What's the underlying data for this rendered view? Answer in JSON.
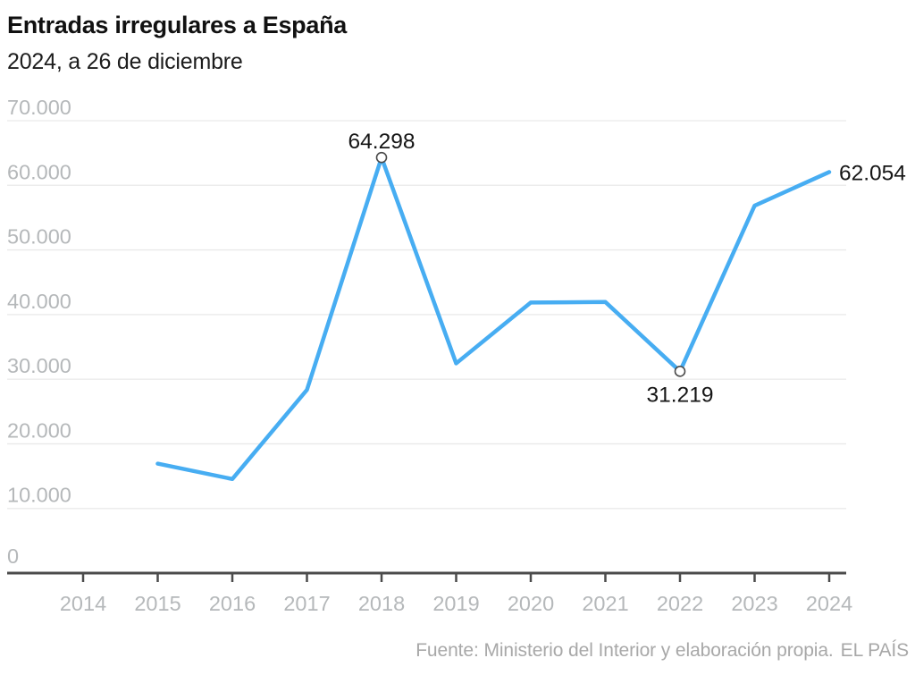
{
  "header": {
    "title": "Entradas irregulares a España",
    "subtitle": "2024, a 26 de diciembre"
  },
  "chart_data": {
    "type": "line",
    "title": "Entradas irregulares a España",
    "subtitle": "2024, a 26 de diciembre",
    "x": [
      2015,
      2016,
      2017,
      2018,
      2019,
      2020,
      2021,
      2022,
      2023,
      2024
    ],
    "values": [
      16936,
      14558,
      28349,
      64298,
      32449,
      41861,
      41945,
      31219,
      56852,
      62054
    ],
    "x_ticks": [
      2014,
      2015,
      2016,
      2017,
      2018,
      2019,
      2020,
      2021,
      2022,
      2023,
      2024
    ],
    "x_tick_labels": [
      "2014",
      "2015",
      "2016",
      "2017",
      "2018",
      "2019",
      "2020",
      "2021",
      "2022",
      "2023",
      "2024"
    ],
    "y_ticks": [
      0,
      10000,
      20000,
      30000,
      40000,
      50000,
      60000,
      70000
    ],
    "y_tick_labels": [
      "0",
      "10.000",
      "20.000",
      "30.000",
      "40.000",
      "50.000",
      "60.000",
      "70.000"
    ],
    "ylim": [
      0,
      70000
    ],
    "xlim": [
      2014,
      2024
    ],
    "grid": "horizontal",
    "legend": "none",
    "annotations": [
      {
        "x": 2018,
        "value": 64298,
        "label": "64.298",
        "position": "above",
        "marker": true
      },
      {
        "x": 2022,
        "value": 31219,
        "label": "31.219",
        "position": "below",
        "marker": true
      },
      {
        "x": 2024,
        "value": 62054,
        "label": "62.054",
        "position": "right",
        "marker": false
      }
    ],
    "theme": {
      "line_color": "#47adf2",
      "marker_fill": "#ffffff",
      "marker_stroke": "#4a4a4a",
      "grid_color": "#e9e9e9",
      "axis_color": "#4b4b4b",
      "tick_label_color": "#b5b8ba",
      "annotation_color": "#151515"
    }
  },
  "footer": {
    "source": "Fuente: Ministerio del Interior y elaboración propia.",
    "brand": "EL PAÍS"
  }
}
